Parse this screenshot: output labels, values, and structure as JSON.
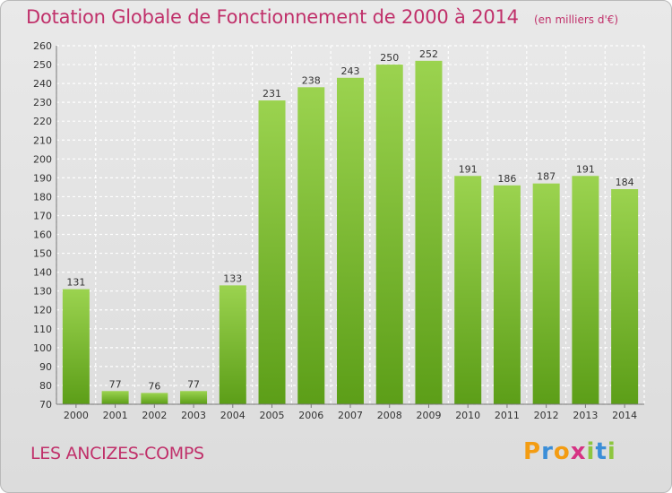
{
  "title": "Dotation Globale de Fonctionnement de 2000 à 2014",
  "subtitle": "(en milliers d'€)",
  "commune": "LES ANCIZES-COMPS",
  "logo": {
    "letters": [
      "P",
      "r",
      "o",
      "x",
      "i",
      "t",
      "i"
    ],
    "colors": [
      "#f39c12",
      "#3b8ed8",
      "#f39c12",
      "#d63384",
      "#8dc63f",
      "#3b8ed8",
      "#8dc63f"
    ]
  },
  "colors": {
    "bar_top": "#9bd34f",
    "bar_bottom": "#5c9e18",
    "accent": "#c0306a"
  },
  "chart_data": {
    "type": "bar",
    "categories": [
      "2000",
      "2001",
      "2002",
      "2003",
      "2004",
      "2005",
      "2006",
      "2007",
      "2008",
      "2009",
      "2010",
      "2011",
      "2012",
      "2013",
      "2014"
    ],
    "values": [
      131,
      77,
      76,
      77,
      133,
      231,
      238,
      243,
      250,
      252,
      191,
      186,
      187,
      191,
      184
    ],
    "ylim": [
      70,
      260
    ],
    "yticks": [
      70,
      80,
      90,
      100,
      110,
      120,
      130,
      140,
      150,
      160,
      170,
      180,
      190,
      200,
      210,
      220,
      230,
      240,
      250,
      260
    ],
    "grid": true,
    "data_labels": true,
    "xlabel": "",
    "ylabel": ""
  }
}
